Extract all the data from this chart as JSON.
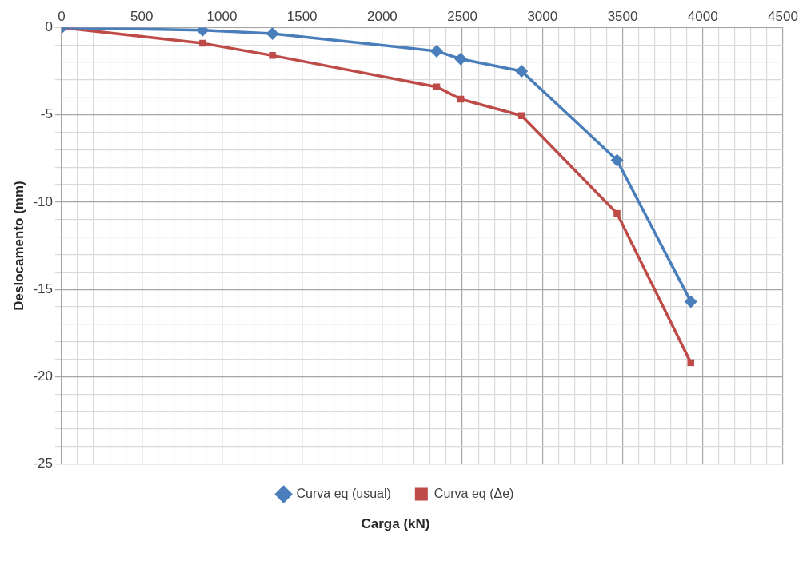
{
  "chart_data": {
    "type": "line",
    "xlabel": "Carga (kN)",
    "ylabel": "Deslocamento (mm)",
    "x": [
      0,
      880,
      1315,
      2340,
      2490,
      2870,
      3465,
      3925
    ],
    "series": [
      {
        "name": "Curva eq (usual)",
        "color": "#4a7ebb",
        "marker": "diamond",
        "values": [
          0,
          -0.15,
          -0.35,
          -1.35,
          -1.8,
          -2.5,
          -7.6,
          -15.7
        ]
      },
      {
        "name": "Curva eq (Δe)",
        "color": "#be4b48",
        "marker": "square",
        "values": [
          0,
          -0.9,
          -1.6,
          -3.4,
          -4.1,
          -5.05,
          -10.65,
          -19.2
        ]
      }
    ],
    "xlim": [
      0,
      4500
    ],
    "xticks": [
      0,
      {
        "value": 100,
        "label": null
      },
      {
        "value": 200,
        "label": null
      },
      {
        "value": 300,
        "label": null
      },
      {
        "value": 400,
        "label": null
      },
      500,
      {
        "value": 600,
        "label": null
      },
      {
        "value": 700,
        "label": null
      },
      {
        "value": 800,
        "label": null
      },
      {
        "value": 900,
        "label": null
      },
      1000,
      {
        "value": 1100,
        "label": null
      },
      {
        "value": 1200,
        "label": null
      },
      {
        "value": 1300,
        "label": null
      },
      {
        "value": 1400,
        "label": null
      },
      1500,
      {
        "value": 1600,
        "label": null
      },
      {
        "value": 1700,
        "label": null
      },
      {
        "value": 1800,
        "label": null
      },
      {
        "value": 1900,
        "label": null
      },
      2000,
      {
        "value": 2100,
        "label": null
      },
      {
        "value": 2200,
        "label": null
      },
      {
        "value": 2300,
        "label": null
      },
      {
        "value": 2400,
        "label": null
      },
      2500,
      {
        "value": 2600,
        "label": null
      },
      {
        "value": 2700,
        "label": null
      },
      {
        "value": 2800,
        "label": null
      },
      {
        "value": 2900,
        "label": null
      },
      3000,
      {
        "value": 3100,
        "label": null
      },
      {
        "value": 3200,
        "label": null
      },
      {
        "value": 3300,
        "label": null
      },
      {
        "value": 3400,
        "label": null
      },
      3500,
      {
        "value": 3600,
        "label": null
      },
      {
        "value": 3700,
        "label": null
      },
      {
        "value": 3800,
        "label": null
      },
      {
        "value": 3900,
        "label": null
      },
      4000,
      {
        "value": 4100,
        "label": null
      },
      {
        "value": 4200,
        "label": null
      },
      {
        "value": 4300,
        "label": null
      },
      {
        "value": 4400,
        "label": null
      },
      4500
    ],
    "ylim": [
      -25,
      0
    ],
    "yticks": [
      -25,
      {
        "value": -24,
        "label": null
      },
      {
        "value": -23,
        "label": null
      },
      {
        "value": -22,
        "label": null
      },
      {
        "value": -21,
        "label": null
      },
      -20,
      {
        "value": -19,
        "label": null
      },
      {
        "value": -18,
        "label": null
      },
      {
        "value": -17,
        "label": null
      },
      {
        "value": -16,
        "label": null
      },
      -15,
      {
        "value": -14,
        "label": null
      },
      {
        "value": -13,
        "label": null
      },
      {
        "value": -12,
        "label": null
      },
      {
        "value": -11,
        "label": null
      },
      -10,
      {
        "value": -9,
        "label": null
      },
      {
        "value": -8,
        "label": null
      },
      {
        "value": -7,
        "label": null
      },
      {
        "value": -6,
        "label": null
      },
      -5,
      {
        "value": -4,
        "label": null
      },
      {
        "value": -3,
        "label": null
      },
      {
        "value": -2,
        "label": null
      },
      {
        "value": -1,
        "label": null
      },
      0
    ],
    "grid": true,
    "legend": "bottom",
    "line_style": "solid"
  }
}
